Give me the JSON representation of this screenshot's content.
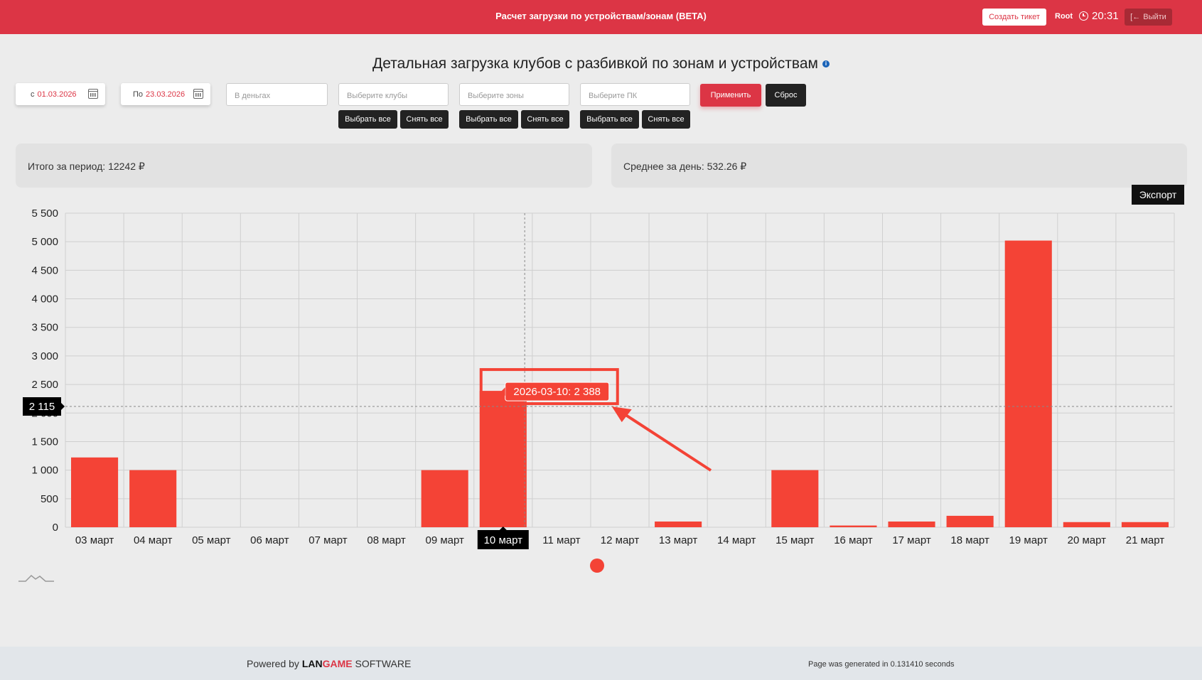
{
  "header": {
    "title": "Расчет загрузки по устройствам/зонам (BETA)",
    "create_ticket": "Создать тикет",
    "user": "Root",
    "time": "20:31",
    "logout": "Выйти",
    "icons": {
      "clock": "clock-icon",
      "logout": "logout-icon"
    }
  },
  "page": {
    "title": "Детальная загрузка клубов с разбивкой по зонам и устройствам",
    "info_icon": "i"
  },
  "filters": {
    "date_from_label": "с",
    "date_from": "01.03.2026",
    "date_to_label": "По",
    "date_to": "23.03.2026",
    "mode_placeholder": "В деньгах",
    "clubs_placeholder": "Выберите клубы",
    "zones_placeholder": "Выберите зоны",
    "pc_placeholder": "Выберите ПК",
    "select_all": "Выбрать все",
    "clear_all": "Снять все",
    "apply": "Применить",
    "reset": "Сброс"
  },
  "summary": {
    "total": "Итого за период: 12242 ₽",
    "average": "Среднее за день: 532.26 ₽"
  },
  "export": "Экспорт",
  "chart_data": {
    "type": "bar",
    "categories": [
      "03 март",
      "04 март",
      "05 март",
      "06 март",
      "07 март",
      "08 март",
      "09 март",
      "10 март",
      "11 март",
      "12 март",
      "13 март",
      "14 март",
      "15 март",
      "16 март",
      "17 март",
      "18 март",
      "19 март",
      "20 март",
      "21 март"
    ],
    "values": [
      1222,
      1000,
      0,
      0,
      0,
      0,
      1000,
      2388,
      0,
      0,
      100,
      0,
      1000,
      30,
      100,
      200,
      5020,
      90,
      90
    ],
    "y_ticks": [
      "0",
      "500",
      "1 000",
      "1 500",
      "2 000",
      "2 500",
      "3 000",
      "3 500",
      "4 000",
      "4 500",
      "5 000",
      "5 500"
    ],
    "ylim": [
      0,
      5500
    ],
    "grid": true,
    "bar_color": "#f44336",
    "highlight_index": 7,
    "crosshair_value": 2115,
    "crosshair_label": "2 115",
    "tooltip": "2026-03-10: 2 388"
  },
  "footer": {
    "powered_prefix": "Powered by ",
    "brand_lan": "LAN",
    "brand_game": "GAME",
    "brand_suffix": " SOFTWARE",
    "generated": "Page was generated in 0.131410 seconds"
  }
}
